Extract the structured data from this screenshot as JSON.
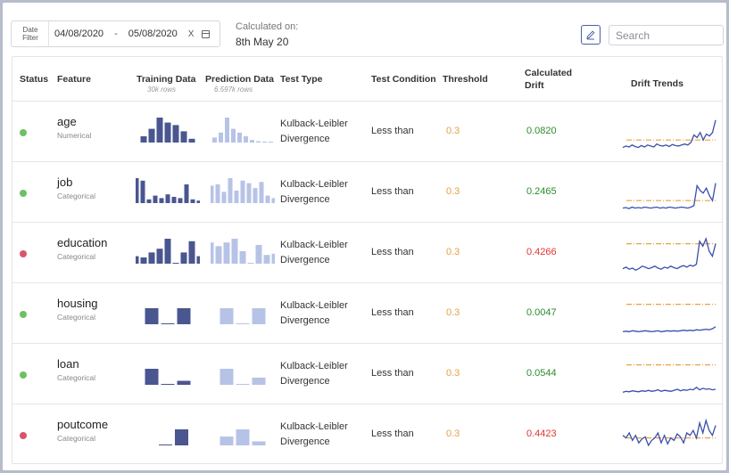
{
  "filter": {
    "label": "Date\nFilter",
    "start": "04/08/2020",
    "sep": "-",
    "end": "05/08/2020",
    "clear": "X"
  },
  "calculated": {
    "label": "Calculated on:",
    "value": "8th May 20"
  },
  "search": {
    "placeholder": "Search"
  },
  "colors": {
    "ok": "#6cc065",
    "bad": "#d9546a",
    "train": "#4a5690",
    "pred": "#b7c3e6",
    "threshold": "#e8a043",
    "drift_ok": "#2e8b2e",
    "drift_bad": "#e3342f",
    "trend_line": "#3a4faa"
  },
  "columns": {
    "status": "Status",
    "feature": "Feature",
    "training": "Training Data",
    "training_sub": "30k rows",
    "prediction": "Prediction Data",
    "prediction_sub": "6.597k rows",
    "test_type": "Test Type",
    "test_condition": "Test Condition",
    "threshold": "Threshold",
    "calc_drift_1": "Calculated",
    "calc_drift_2": "Drift",
    "trends": "Drift Trends"
  },
  "rows": [
    {
      "status": "ok",
      "feature": "age",
      "type": "Numerical",
      "test_1": "Kulback-Leibler",
      "test_2": "Divergence",
      "condition": "Less than",
      "threshold": "0.3",
      "drift": "0.0820",
      "train": [
        0.25,
        0.55,
        1.0,
        0.8,
        0.7,
        0.45,
        0.15
      ],
      "pred": [
        0.2,
        0.4,
        1.0,
        0.55,
        0.4,
        0.25,
        0.1,
        0.05,
        0.03,
        0.03
      ],
      "trend": [
        0.15,
        0.18,
        0.16,
        0.2,
        0.17,
        0.15,
        0.19,
        0.16,
        0.2,
        0.18,
        0.16,
        0.22,
        0.19,
        0.18,
        0.2,
        0.17,
        0.21,
        0.19,
        0.18,
        0.2,
        0.22,
        0.2,
        0.25,
        0.4,
        0.35,
        0.45,
        0.3,
        0.42,
        0.38,
        0.45,
        0.7
      ],
      "trend_threshold": 0.3
    },
    {
      "status": "ok",
      "feature": "job",
      "type": "Categorical",
      "test_1": "Kulback-Leibler",
      "test_2": "Divergence",
      "condition": "Less than",
      "threshold": "0.3",
      "drift": "0.2465",
      "train": [
        1.0,
        0.9,
        0.15,
        0.3,
        0.2,
        0.35,
        0.25,
        0.2,
        0.75,
        0.15,
        0.1
      ],
      "pred": [
        0.7,
        0.75,
        0.45,
        1.0,
        0.5,
        0.9,
        0.8,
        0.6,
        0.85,
        0.3,
        0.2
      ],
      "trend": [
        0.15,
        0.16,
        0.14,
        0.17,
        0.15,
        0.16,
        0.15,
        0.17,
        0.16,
        0.15,
        0.16,
        0.17,
        0.15,
        0.16,
        0.15,
        0.17,
        0.16,
        0.15,
        0.16,
        0.17,
        0.16,
        0.15,
        0.17,
        0.2,
        0.6,
        0.5,
        0.45,
        0.55,
        0.4,
        0.3,
        0.65
      ],
      "trend_threshold": 0.3
    },
    {
      "status": "bad",
      "feature": "education",
      "type": "Categorical",
      "test_1": "Kulback-Leibler",
      "test_2": "Divergence",
      "condition": "Less than",
      "threshold": "0.3",
      "drift": "0.4266",
      "train": [
        0.3,
        0.25,
        0.45,
        0.6,
        1.0,
        0.0,
        0.45,
        0.9,
        0.3
      ],
      "pred": [
        0.85,
        0.7,
        0.85,
        1.0,
        0.5,
        0.0,
        0.75,
        0.35,
        0.4
      ],
      "trend": [
        0.15,
        0.18,
        0.14,
        0.16,
        0.12,
        0.15,
        0.2,
        0.18,
        0.15,
        0.17,
        0.2,
        0.16,
        0.14,
        0.18,
        0.16,
        0.2,
        0.17,
        0.15,
        0.19,
        0.21,
        0.18,
        0.22,
        0.2,
        0.24,
        0.7,
        0.6,
        0.75,
        0.5,
        0.4,
        0.65
      ],
      "trend_threshold": 0.65
    },
    {
      "status": "ok",
      "feature": "housing",
      "type": "Categorical",
      "test_1": "Kulback-Leibler",
      "test_2": "Divergence",
      "condition": "Less than",
      "threshold": "0.3",
      "drift": "0.0047",
      "train": [
        1.0,
        0.05,
        1.0
      ],
      "pred": [
        1.0,
        0.05,
        1.0
      ],
      "trend": [
        0.1,
        0.11,
        0.1,
        0.12,
        0.11,
        0.1,
        0.11,
        0.12,
        0.11,
        0.1,
        0.11,
        0.12,
        0.1,
        0.11,
        0.12,
        0.11,
        0.12,
        0.11,
        0.12,
        0.13,
        0.12,
        0.13,
        0.12,
        0.14,
        0.13,
        0.14,
        0.15,
        0.14,
        0.16,
        0.2
      ],
      "trend_threshold": 0.65
    },
    {
      "status": "ok",
      "feature": "loan",
      "type": "Categorical",
      "test_1": "Kulback-Leibler",
      "test_2": "Divergence",
      "condition": "Less than",
      "threshold": "0.3",
      "drift": "0.0544",
      "train": [
        1.0,
        0.05,
        0.25
      ],
      "pred": [
        1.0,
        0.05,
        0.45
      ],
      "trend": [
        0.1,
        0.12,
        0.11,
        0.13,
        0.12,
        0.11,
        0.13,
        0.12,
        0.14,
        0.12,
        0.13,
        0.15,
        0.12,
        0.14,
        0.13,
        0.12,
        0.14,
        0.16,
        0.13,
        0.15,
        0.14,
        0.16,
        0.15,
        0.2,
        0.15,
        0.18,
        0.16,
        0.17,
        0.15,
        0.16
      ],
      "trend_threshold": 0.65
    },
    {
      "status": "bad",
      "feature": "poutcome",
      "type": "Categorical",
      "test_1": "Kulback-Leibler",
      "test_2": "Divergence",
      "condition": "Less than",
      "threshold": "0.3",
      "drift": "0.4423",
      "train": [
        0.05,
        1.0
      ],
      "pred": [
        0.55,
        1.0,
        0.25
      ],
      "trend": [
        0.45,
        0.4,
        0.5,
        0.35,
        0.45,
        0.3,
        0.38,
        0.42,
        0.25,
        0.35,
        0.4,
        0.5,
        0.3,
        0.45,
        0.28,
        0.4,
        0.35,
        0.48,
        0.42,
        0.3,
        0.5,
        0.45,
        0.55,
        0.4,
        0.7,
        0.5,
        0.75,
        0.55,
        0.45,
        0.65
      ],
      "trend_threshold": 0.4
    }
  ]
}
